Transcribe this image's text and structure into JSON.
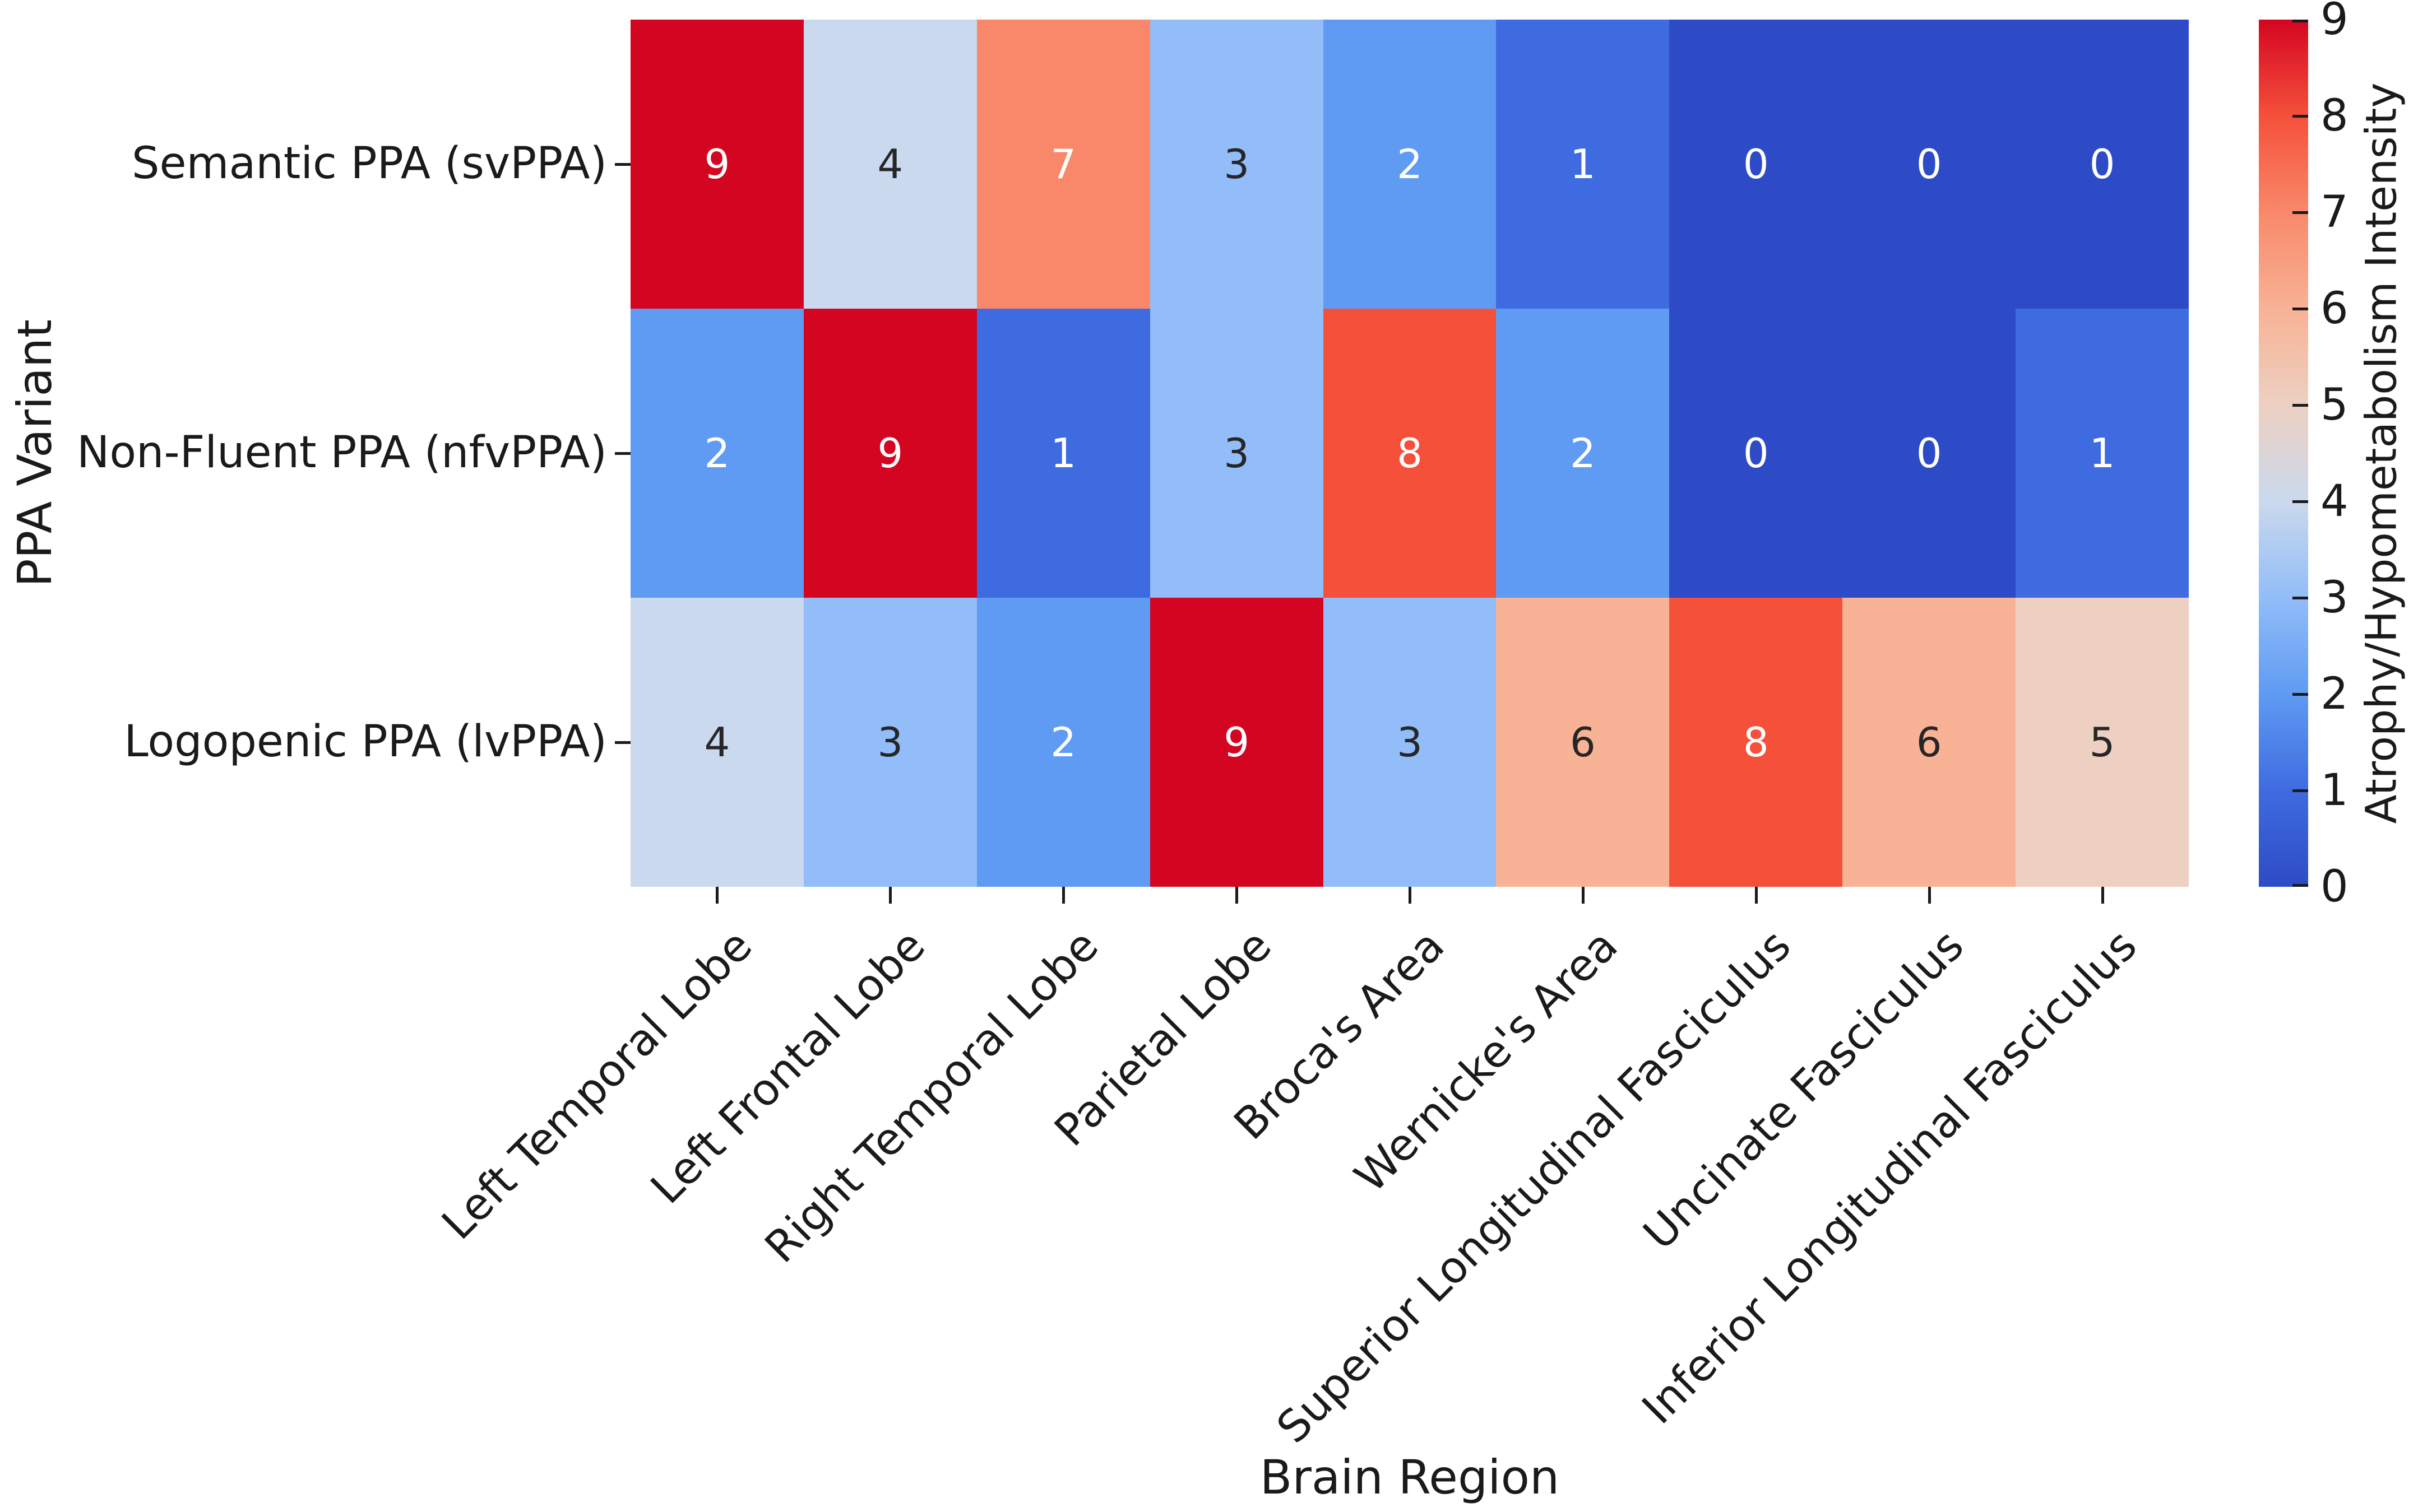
{
  "chart_data": {
    "type": "heatmap",
    "xlabel": "Brain Region",
    "ylabel": "PPA Variant",
    "colorbar_label": "Atrophy/Hypometabolism Intensity",
    "x_categories": [
      "Left Temporal Lobe",
      "Left Frontal Lobe",
      "Right Temporal Lobe",
      "Parietal Lobe",
      "Broca's Area",
      "Wernicke's Area",
      "Superior Longitudinal Fasciculus",
      "Uncinate Fasciculus",
      "Inferior Longitudinal Fasciculus"
    ],
    "y_categories": [
      "Semantic PPA (svPPA)",
      "Non-Fluent PPA (nfvPPA)",
      "Logopenic PPA (lvPPA)"
    ],
    "values": [
      [
        9,
        4,
        7,
        3,
        2,
        1,
        0,
        0,
        0
      ],
      [
        2,
        9,
        1,
        3,
        8,
        2,
        0,
        0,
        1
      ],
      [
        4,
        3,
        2,
        9,
        3,
        6,
        8,
        6,
        5
      ]
    ],
    "vmin": 0,
    "vmax": 9,
    "colorbar_ticks": [
      0,
      1,
      2,
      3,
      4,
      5,
      6,
      7,
      8,
      9
    ],
    "value_colors": [
      "#2D4BC6",
      "#3F6BE0",
      "#5F9BF3",
      "#92BDF8",
      "#CAD9ED",
      "#EDD0C2",
      "#F8B295",
      "#F9886A",
      "#F5503A",
      "#D40521"
    ],
    "dark_text_values": [
      3,
      4,
      5,
      6
    ],
    "annotation_colors": {
      "light": "#ffffff",
      "dark": "#262626"
    },
    "tick_color": "#1a1a1a",
    "legend_position": "right",
    "grid": false
  }
}
